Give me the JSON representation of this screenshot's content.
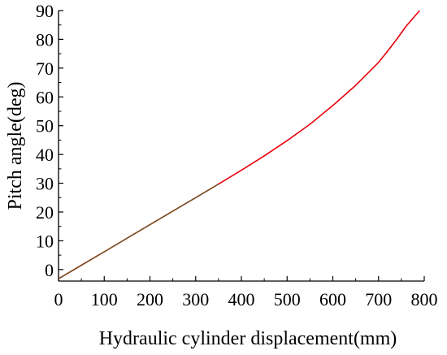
{
  "chart_data": {
    "type": "line",
    "title": "",
    "xlabel": "Hydraulic cylinder displacement(mm)",
    "ylabel": "Pitch angle(deg)",
    "xlim": [
      0,
      800
    ],
    "ylim": [
      -4,
      90
    ],
    "xticks": [
      0,
      100,
      200,
      300,
      400,
      500,
      600,
      700,
      800
    ],
    "yticks": [
      0,
      10,
      20,
      30,
      40,
      50,
      60,
      70,
      80,
      90
    ],
    "grid": false,
    "legend": "none",
    "series": [
      {
        "color": "#e8000b",
        "x": [
          0,
          50,
          100,
          150,
          200,
          250,
          300,
          350,
          400,
          450,
          500,
          550,
          600,
          650,
          700,
          720,
          740,
          760,
          780,
          790
        ],
        "y": [
          -3.2,
          1.5,
          6.2,
          10.9,
          15.6,
          20.3,
          25.0,
          29.7,
          34.5,
          39.5,
          44.8,
          50.5,
          57.0,
          64.0,
          72.0,
          75.9,
          80.1,
          84.5,
          88.2,
          90.0
        ]
      }
    ],
    "overlay_color": "#4a6a2a",
    "overlay_xmax": 360
  }
}
